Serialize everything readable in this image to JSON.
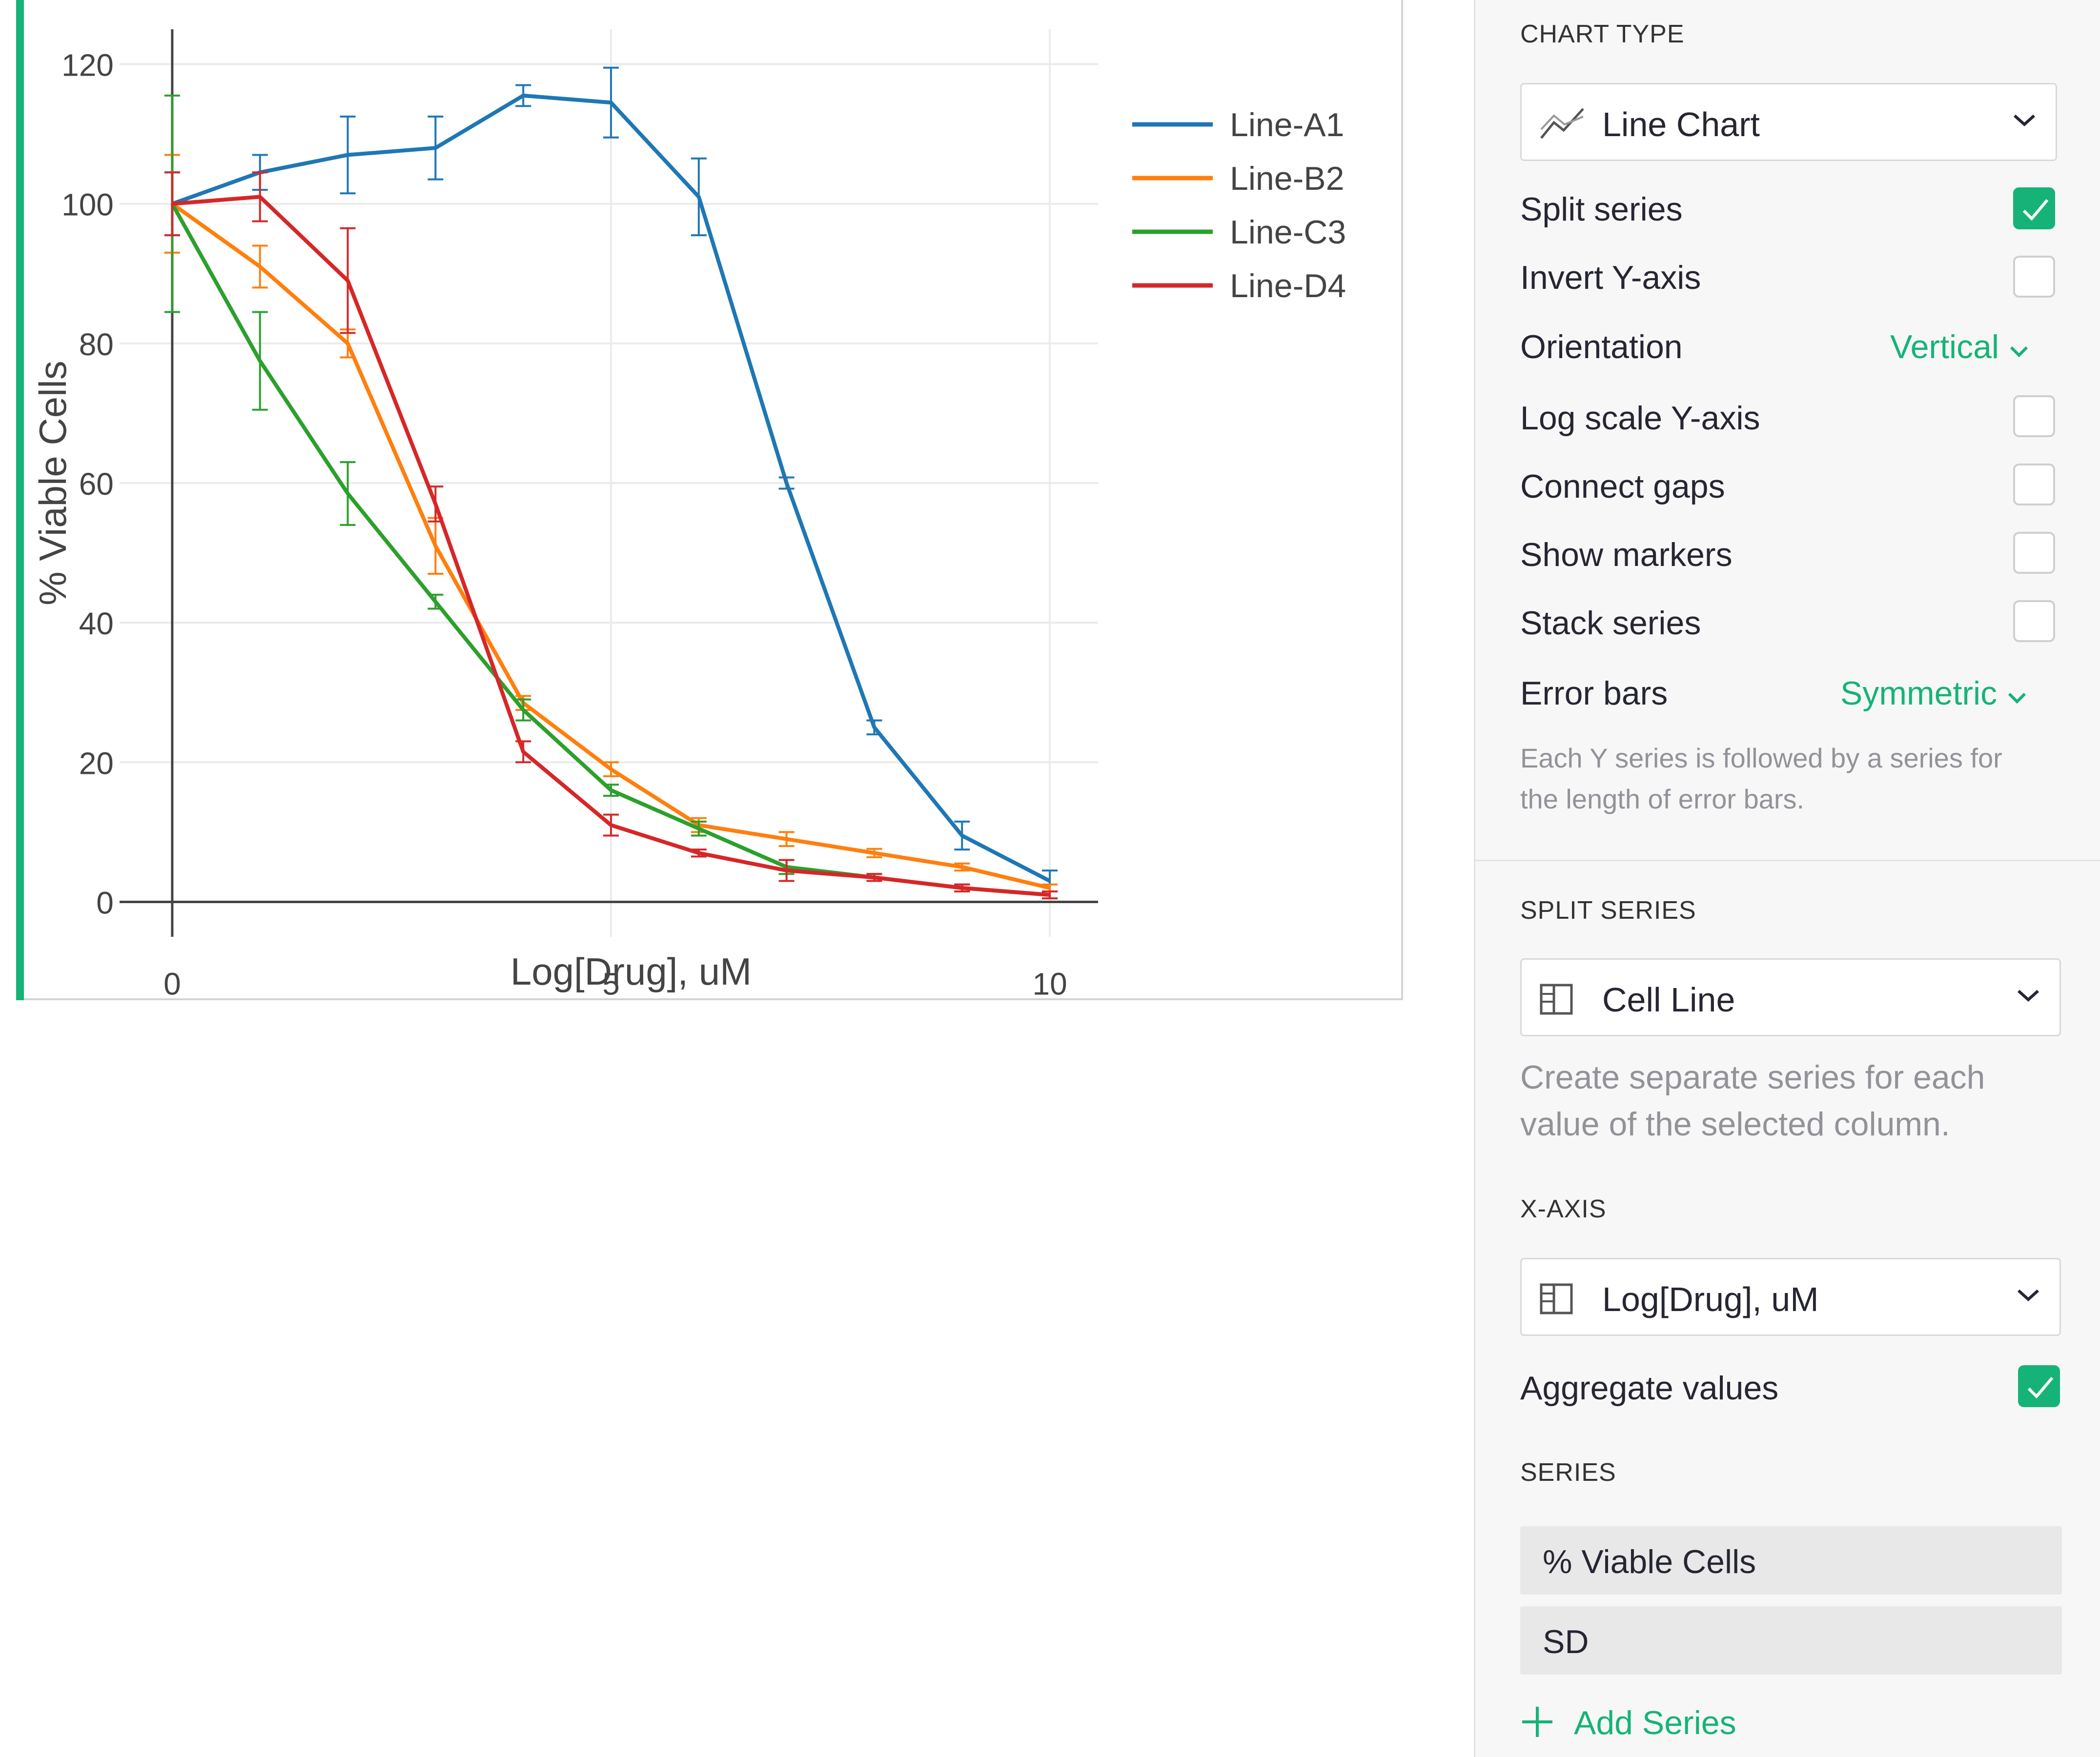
{
  "chart": {
    "colors": {
      "Line-A1": "#1f77b4",
      "Line-B2": "#ff7f0e",
      "Line-C3": "#2ca02c",
      "Line-D4": "#d62728"
    },
    "accent": "#16b378"
  },
  "chart_data": {
    "type": "line",
    "xlabel": "Log[Drug], uM",
    "ylabel": "% Viable Cells",
    "xlim": [
      -0.6,
      10.55
    ],
    "ylim": [
      -5,
      125
    ],
    "xticks": [
      0,
      5,
      10
    ],
    "yticks": [
      0,
      20,
      40,
      60,
      80,
      100,
      120
    ],
    "grid": true,
    "legend": "top-right",
    "x": [
      0,
      1,
      2,
      3,
      4,
      5,
      6,
      7,
      8,
      9,
      10
    ],
    "series": [
      {
        "name": "Line-A1",
        "values": [
          100,
          104.5,
          107,
          108,
          115.5,
          114.5,
          101,
          60,
          25,
          9.5,
          3
        ],
        "errors": [
          4.5,
          2.5,
          5.5,
          4.5,
          1.5,
          5,
          5.5,
          0.8,
          1,
          2,
          1.5
        ]
      },
      {
        "name": "Line-B2",
        "values": [
          100,
          91,
          80,
          51,
          28.5,
          19,
          11,
          9,
          7,
          5,
          2
        ],
        "errors": [
          7,
          3,
          2,
          4,
          1,
          1,
          1,
          1,
          0.6,
          0.5,
          0.5
        ]
      },
      {
        "name": "Line-C3",
        "values": [
          100,
          77.5,
          58.5,
          43,
          27.5,
          16,
          10.5,
          5,
          3.5,
          2,
          1
        ],
        "errors": [
          15.5,
          7,
          4.5,
          1,
          1.5,
          0.8,
          1,
          1,
          0.5,
          0.5,
          0.5
        ]
      },
      {
        "name": "Line-D4",
        "values": [
          100,
          101,
          89,
          57,
          21.5,
          11,
          7,
          4.5,
          3.5,
          2,
          1
        ],
        "errors": [
          4.5,
          3.5,
          7.5,
          2.5,
          1.5,
          1.5,
          0.5,
          1.5,
          0.5,
          0.5,
          0.5
        ]
      }
    ]
  },
  "panel": {
    "chart_type": {
      "title": "CHART TYPE",
      "value": "Line Chart"
    },
    "options": {
      "split_series": {
        "label": "Split series",
        "checked": true
      },
      "invert_y": {
        "label": "Invert Y-axis",
        "checked": false
      },
      "orientation": {
        "label": "Orientation",
        "value": "Vertical"
      },
      "log_y": {
        "label": "Log scale Y-axis",
        "checked": false
      },
      "connect_gaps": {
        "label": "Connect gaps",
        "checked": false
      },
      "show_markers": {
        "label": "Show markers",
        "checked": false
      },
      "stack_series": {
        "label": "Stack series",
        "checked": false
      },
      "error_bars": {
        "label": "Error bars",
        "value": "Symmetric"
      },
      "error_hint_1": "Each Y series is followed by a series for",
      "error_hint_2": "the length of error bars."
    },
    "split_series": {
      "title": "SPLIT SERIES",
      "value": "Cell Line",
      "hint_1": "Create separate series for each",
      "hint_2": "value of the selected column."
    },
    "x_axis": {
      "title": "X-AXIS",
      "value": "Log[Drug], uM"
    },
    "aggregate": {
      "label": "Aggregate values",
      "checked": true
    },
    "series": {
      "title": "SERIES",
      "items": [
        "% Viable Cells",
        "SD"
      ],
      "add_label": "Add Series"
    }
  }
}
